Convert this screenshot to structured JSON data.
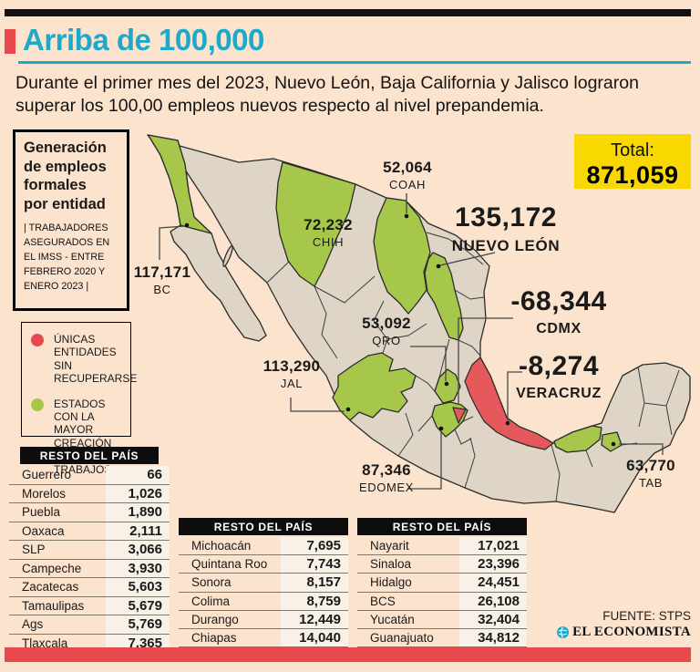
{
  "colors": {
    "background": "#fbe3cd",
    "accent_cyan": "#1ea9c9",
    "accent_red": "#e8494e",
    "accent_yellow": "#f8d800",
    "state_positive_green": "#a7c74b",
    "state_negative_red": "#e5585c",
    "state_neutral_beige": "#ded5c6"
  },
  "header": {
    "title": "Arriba de 100,000",
    "intro": "Durante el primer mes del 2023, Nuevo León, Baja California y Jalisco lograron superar los 100,00 empleos nuevos respecto al nivel prepandemia."
  },
  "info_box": {
    "title": "Generación\nde empleos\nformales\npor entidad",
    "subtitle": "| TRABAJADORES ASEGURADOS EN EL IMSS - ENTRE FEBRERO 2020 Y ENERO 2023 |"
  },
  "total_box": {
    "label": "Total:",
    "value": "871,059"
  },
  "legend": {
    "items": [
      {
        "color": "#e8494e",
        "label": "ÚNICAS ENTIDADES SIN RECUPERARSE"
      },
      {
        "color": "#a7c74b",
        "label": "ESTADOS CON LA MAYOR CREACIÓN DE TRABAJOS"
      }
    ]
  },
  "map_labels": {
    "bc": {
      "value": "117,171",
      "state": "BC"
    },
    "chih": {
      "value": "72,232",
      "state": "CHIH"
    },
    "coah": {
      "value": "52,064",
      "state": "COAH"
    },
    "nl": {
      "value": "135,172",
      "state": "NUEVO LEÓN"
    },
    "cdmx": {
      "value": "-68,344",
      "state": "CDMX"
    },
    "veracruz": {
      "value": "-8,274",
      "state": "VERACRUZ"
    },
    "qro": {
      "value": "53,092",
      "state": "QRO"
    },
    "jal": {
      "value": "113,290",
      "state": "JAL"
    },
    "edomex": {
      "value": "87,346",
      "state": "EDOMEX"
    },
    "tab": {
      "value": "63,770",
      "state": "TAB"
    }
  },
  "tables": [
    {
      "header": "RESTO DEL PAÍS",
      "rows": [
        [
          "Guerrero",
          "66"
        ],
        [
          "Morelos",
          "1,026"
        ],
        [
          "Puebla",
          "1,890"
        ],
        [
          "Oaxaca",
          "2,111"
        ],
        [
          "SLP",
          "3,066"
        ],
        [
          "Campeche",
          "3,930"
        ],
        [
          "Zacatecas",
          "5,603"
        ],
        [
          "Tamaulipas",
          "5,679"
        ],
        [
          "Ags",
          "5,769"
        ],
        [
          "Tlaxcala",
          "7,365"
        ]
      ]
    },
    {
      "header": "RESTO DEL PAÍS",
      "rows": [
        [
          "Michoacán",
          "7,695"
        ],
        [
          "Quintana Roo",
          "7,743"
        ],
        [
          "Sonora",
          "8,157"
        ],
        [
          "Colima",
          "8,759"
        ],
        [
          "Durango",
          "12,449"
        ],
        [
          "Chiapas",
          "14,040"
        ]
      ]
    },
    {
      "header": "RESTO DEL PAÍS",
      "rows": [
        [
          "Nayarit",
          "17,021"
        ],
        [
          "Sinaloa",
          "23,396"
        ],
        [
          "Hidalgo",
          "24,451"
        ],
        [
          "BCS",
          "26,108"
        ],
        [
          "Yucatán",
          "32,404"
        ],
        [
          "Guanajuato",
          "34,812"
        ]
      ]
    }
  ],
  "footer": {
    "source": "FUENTE: STPS",
    "brand": "EL ECONOMISTA"
  },
  "chart_data": {
    "type": "table",
    "title": "Arriba de 100,000",
    "subtitle": "Generación de empleos formales por entidad — trabajadores asegurados en el IMSS, entre febrero 2020 y enero 2023",
    "total": 871059,
    "legend": [
      "Únicas entidades sin recuperarse (rojo)",
      "Estados con la mayor creación de trabajos (verde)"
    ],
    "map_highlights": [
      {
        "state": "BC",
        "value": 117171,
        "category": "mayor_creacion"
      },
      {
        "state": "CHIH",
        "value": 72232,
        "category": "mayor_creacion"
      },
      {
        "state": "COAH",
        "value": 52064,
        "category": "mayor_creacion"
      },
      {
        "state": "NUEVO LEÓN",
        "value": 135172,
        "category": "mayor_creacion"
      },
      {
        "state": "JAL",
        "value": 113290,
        "category": "mayor_creacion"
      },
      {
        "state": "QRO",
        "value": 53092,
        "category": "mayor_creacion"
      },
      {
        "state": "EDOMEX",
        "value": 87346,
        "category": "mayor_creacion"
      },
      {
        "state": "TAB",
        "value": 63770,
        "category": "mayor_creacion"
      },
      {
        "state": "CDMX",
        "value": -68344,
        "category": "sin_recuperarse"
      },
      {
        "state": "VERACRUZ",
        "value": -8274,
        "category": "sin_recuperarse"
      }
    ],
    "resto_del_pais": [
      [
        [
          "Guerrero",
          66
        ],
        [
          "Morelos",
          1026
        ],
        [
          "Puebla",
          1890
        ],
        [
          "Oaxaca",
          2111
        ],
        [
          "SLP",
          3066
        ],
        [
          "Campeche",
          3930
        ],
        [
          "Zacatecas",
          5603
        ],
        [
          "Tamaulipas",
          5679
        ],
        [
          "Ags",
          5769
        ],
        [
          "Tlaxcala",
          7365
        ]
      ],
      [
        [
          "Michoacán",
          7695
        ],
        [
          "Quintana Roo",
          7743
        ],
        [
          "Sonora",
          8157
        ],
        [
          "Colima",
          8759
        ],
        [
          "Durango",
          12449
        ],
        [
          "Chiapas",
          14040
        ]
      ],
      [
        [
          "Nayarit",
          17021
        ],
        [
          "Sinaloa",
          23396
        ],
        [
          "Hidalgo",
          24451
        ],
        [
          "BCS",
          26108
        ],
        [
          "Yucatán",
          32404
        ],
        [
          "Guanajuato",
          34812
        ]
      ]
    ]
  }
}
